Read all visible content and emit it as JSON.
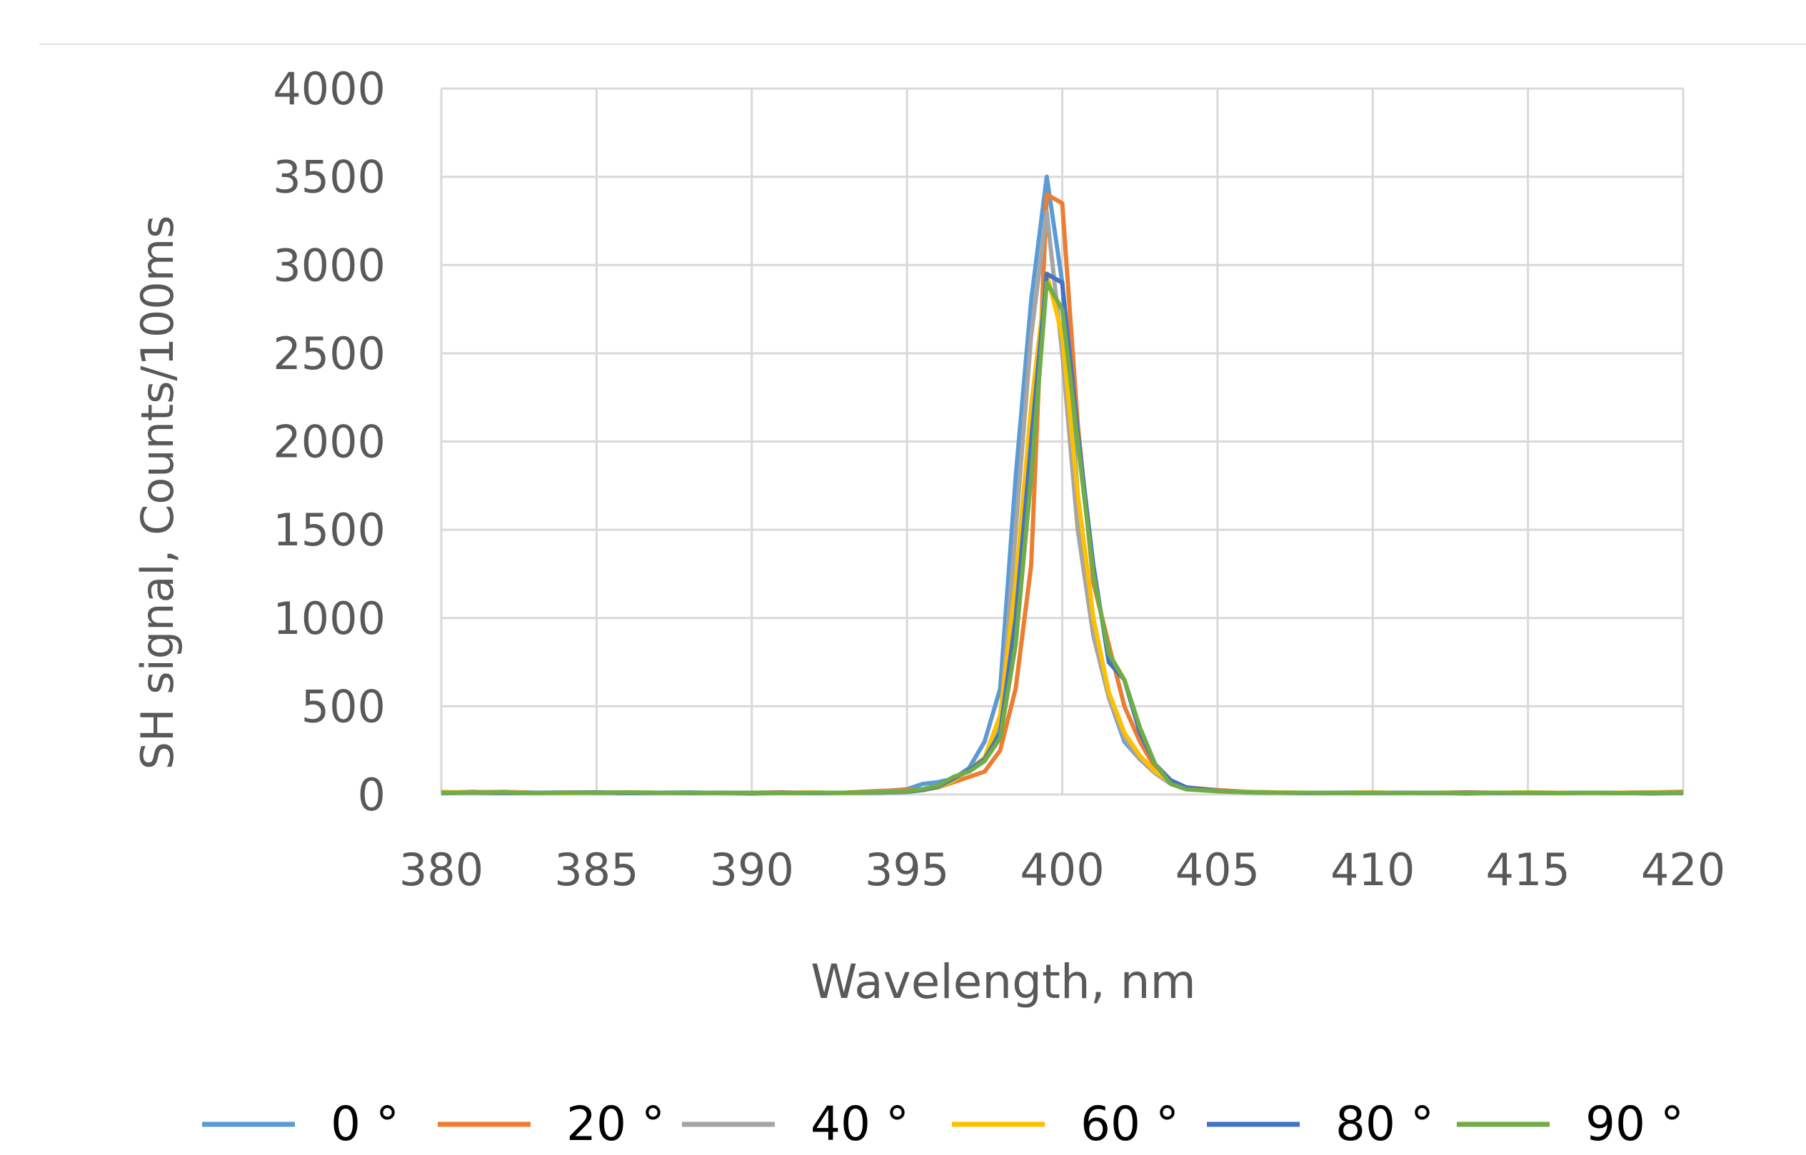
{
  "chart_data": {
    "type": "line",
    "title": "",
    "xlabel": "Wavelength, nm",
    "ylabel": "SH signal, Counts/100ms",
    "xlim": [
      380,
      420
    ],
    "ylim": [
      0,
      4000
    ],
    "x_ticks": [
      380,
      385,
      390,
      395,
      400,
      405,
      410,
      415,
      420
    ],
    "y_ticks": [
      0,
      500,
      1000,
      1500,
      2000,
      2500,
      3000,
      3500,
      4000
    ],
    "grid": true,
    "legend_position": "bottom",
    "x": [
      380,
      381,
      382,
      383,
      384,
      385,
      386,
      387,
      388,
      389,
      390,
      391,
      392,
      393,
      394,
      395,
      395.5,
      396,
      396.5,
      397,
      397.5,
      398,
      398.5,
      399,
      399.5,
      400,
      400.5,
      401,
      401.5,
      402,
      402.5,
      403,
      403.5,
      404,
      405,
      406,
      407,
      408,
      409,
      410,
      411,
      412,
      413,
      414,
      415,
      416,
      417,
      418,
      419,
      420
    ],
    "series": [
      {
        "name": "0 °",
        "color": "#5b9bd5",
        "values": [
          10,
          15,
          10,
          8,
          12,
          10,
          8,
          10,
          12,
          8,
          5,
          10,
          8,
          10,
          15,
          30,
          60,
          70,
          90,
          150,
          300,
          600,
          1800,
          2800,
          3500,
          2900,
          1700,
          1000,
          550,
          300,
          200,
          120,
          60,
          30,
          20,
          15,
          10,
          10,
          8,
          10,
          8,
          10,
          5,
          10,
          8,
          10,
          8,
          10,
          5,
          10
        ]
      },
      {
        "name": "20 °",
        "color": "#ed7d31",
        "values": [
          10,
          12,
          15,
          10,
          10,
          12,
          8,
          10,
          10,
          8,
          10,
          12,
          8,
          10,
          20,
          25,
          30,
          40,
          70,
          100,
          130,
          250,
          600,
          1300,
          3400,
          3350,
          2100,
          1200,
          850,
          500,
          300,
          150,
          70,
          40,
          25,
          15,
          10,
          10,
          8,
          10,
          8,
          10,
          12,
          10,
          8,
          10,
          8,
          10,
          12,
          15
        ]
      },
      {
        "name": "40 °",
        "color": "#a5a5a5",
        "values": [
          8,
          10,
          10,
          8,
          12,
          8,
          10,
          8,
          10,
          8,
          10,
          8,
          10,
          8,
          15,
          20,
          30,
          50,
          90,
          140,
          200,
          400,
          1500,
          2600,
          3300,
          2500,
          1500,
          900,
          550,
          320,
          200,
          120,
          60,
          30,
          20,
          12,
          10,
          8,
          8,
          10,
          8,
          8,
          10,
          8,
          10,
          8,
          10,
          8,
          10,
          8
        ]
      },
      {
        "name": "60 °",
        "color": "#ffc000",
        "values": [
          15,
          10,
          12,
          10,
          8,
          10,
          12,
          10,
          8,
          10,
          8,
          10,
          12,
          8,
          10,
          15,
          25,
          40,
          80,
          140,
          210,
          450,
          1200,
          2200,
          2950,
          2600,
          1700,
          1000,
          580,
          350,
          220,
          130,
          70,
          35,
          20,
          15,
          12,
          10,
          10,
          12,
          8,
          10,
          10,
          10,
          12,
          10,
          8,
          10,
          12,
          10
        ]
      },
      {
        "name": "80 °",
        "color": "#4472c4",
        "values": [
          8,
          10,
          8,
          10,
          10,
          12,
          8,
          10,
          8,
          10,
          8,
          10,
          8,
          10,
          10,
          15,
          25,
          45,
          90,
          140,
          200,
          350,
          1000,
          2000,
          2950,
          2900,
          2050,
          1300,
          750,
          650,
          350,
          170,
          80,
          40,
          20,
          12,
          10,
          8,
          10,
          8,
          10,
          8,
          10,
          8,
          10,
          8,
          10,
          8,
          10,
          8
        ]
      },
      {
        "name": "90 °",
        "color": "#70ad47",
        "values": [
          10,
          10,
          12,
          8,
          10,
          10,
          12,
          10,
          10,
          8,
          10,
          8,
          10,
          10,
          12,
          18,
          30,
          50,
          100,
          130,
          190,
          320,
          850,
          1800,
          2900,
          2750,
          2000,
          1250,
          800,
          650,
          380,
          170,
          60,
          30,
          18,
          12,
          10,
          10,
          8,
          10,
          8,
          10,
          8,
          10,
          10,
          8,
          10,
          8,
          10,
          10
        ]
      }
    ]
  }
}
